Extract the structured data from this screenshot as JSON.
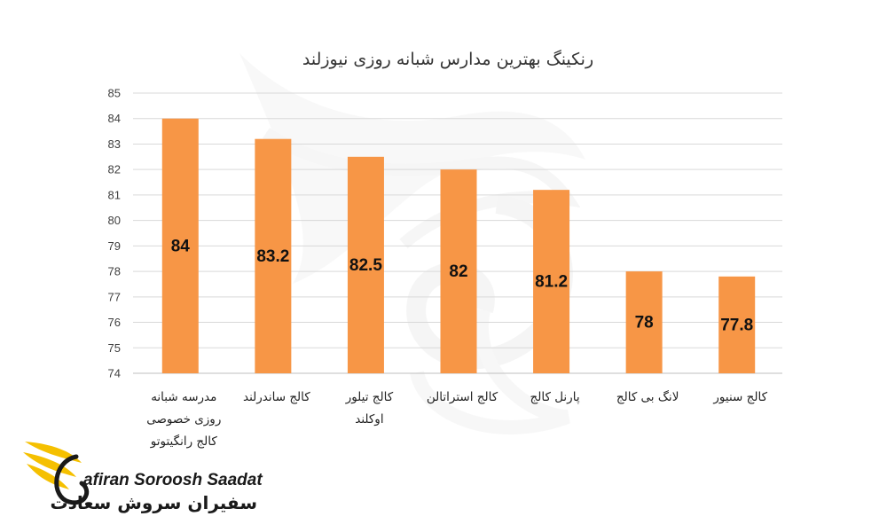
{
  "chart_data": {
    "type": "bar",
    "title": "رنکینگ بهترین مدارس شبانه روزی نیوزلند",
    "categories": [
      [
        "مدرسه شبانه",
        "روزی خصوصی",
        "کالج رانگیتوتو"
      ],
      [
        "کالج ساندرلند"
      ],
      [
        "کالج تیلور",
        "اوکلند"
      ],
      [
        "کالج استراتالن"
      ],
      [
        "پارنل کالج"
      ],
      [
        "لانگ بی کالج"
      ],
      [
        "کالج سنیور"
      ]
    ],
    "values": [
      84,
      83.2,
      82.5,
      82,
      81.2,
      78,
      77.8
    ],
    "data_labels": [
      "84",
      "83.2",
      "82.5",
      "82",
      "81.2",
      "78",
      "77.8"
    ],
    "ylim": [
      74,
      85
    ],
    "yticks": [
      74,
      75,
      76,
      77,
      78,
      79,
      80,
      81,
      82,
      83,
      84,
      85
    ],
    "grid": true,
    "legend": "none",
    "colors": {
      "bar": "#F79646",
      "grid": "#d9d9d9",
      "text": "#222222"
    }
  },
  "watermark": {
    "icon": "wing-swirl-icon"
  },
  "logo": {
    "icon": "golden-wing-icon",
    "text_en": "afiran Soroosh Saadat",
    "text_fa": "سفیران سروش سعادت",
    "colors": {
      "gold": "#F5C000",
      "dark": "#1a1a1a"
    }
  }
}
